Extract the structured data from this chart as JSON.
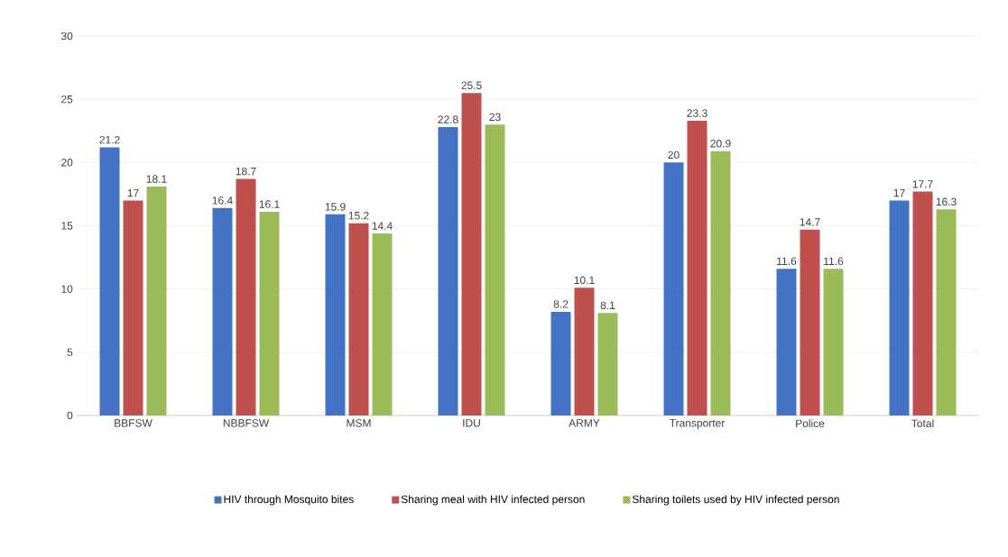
{
  "chart_data": {
    "type": "bar",
    "categories": [
      "BBFSW",
      "NBBFSW",
      "MSM",
      "IDU",
      "ARMY",
      "Transporter",
      "Police",
      "Total"
    ],
    "series": [
      {
        "name": "HIV through Mosquito bites",
        "color": "#4472c4",
        "values": [
          21.2,
          16.4,
          15.9,
          22.8,
          8.2,
          20,
          11.6,
          17
        ]
      },
      {
        "name": "Sharing meal with HIV infected person",
        "color": "#c0504d",
        "values": [
          17,
          18.7,
          15.2,
          25.5,
          10.1,
          23.3,
          14.7,
          17.7
        ]
      },
      {
        "name": "Sharing toilets used by HIV infected person",
        "color": "#9bbb59",
        "values": [
          18.1,
          16.1,
          14.4,
          23,
          8.1,
          20.9,
          11.6,
          16.3
        ]
      }
    ],
    "ylim": [
      0,
      30
    ],
    "yticks": [
      0,
      5,
      10,
      15,
      20,
      25,
      30
    ],
    "grid": "y",
    "legend": "bottom",
    "data_labels": true
  }
}
